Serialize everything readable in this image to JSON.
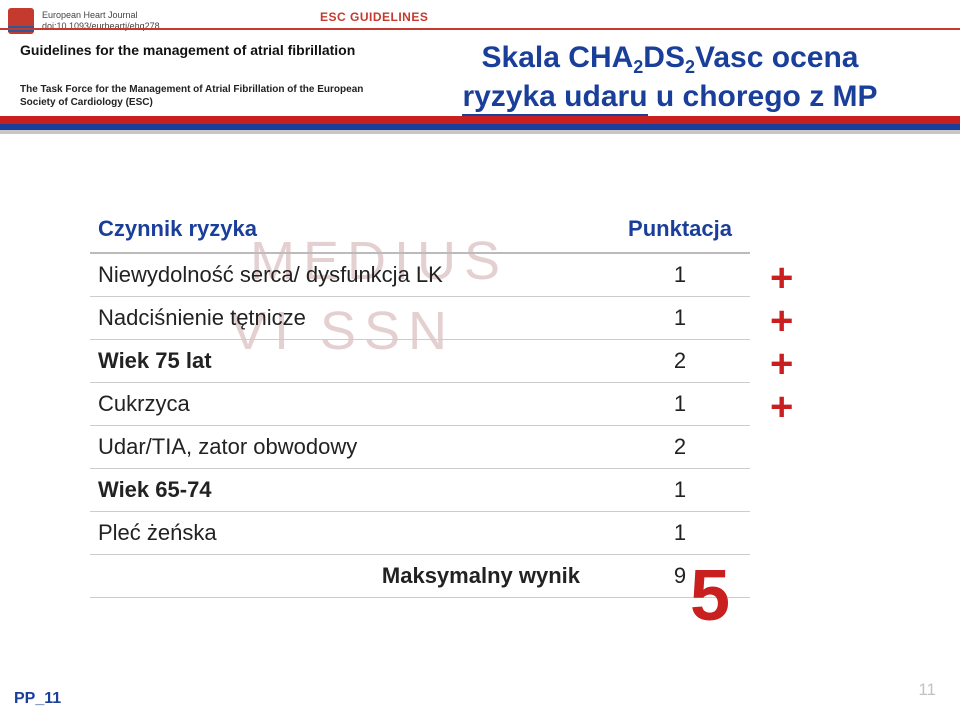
{
  "header": {
    "journal_name": "European Heart Journal",
    "journal_doi": "doi:10.1093/eurheartj/ehq278",
    "badge": "ESC GUIDELINES",
    "guidelines_title": "Guidelines for the management of atrial fibrillation",
    "taskforce": "The Task Force for the Management of Atrial Fibrillation of the European Society of Cardiology (ESC)"
  },
  "title": {
    "line1_pre": "Skala CHA",
    "sub1": "2",
    "mid1": "DS",
    "sub2": "2",
    "mid2": "Vasc ocena",
    "line2_a": "ryzyka udaru",
    "line2_b": "u chorego z MP"
  },
  "table": {
    "header_factor": "Czynnik ryzyka",
    "header_points": "Punktacja",
    "rows": [
      {
        "label": "Niewydolność serca/ dysfunkcja LK",
        "points": "1",
        "bold": false,
        "plus": true
      },
      {
        "label": "Nadciśnienie tętnicze",
        "points": "1",
        "bold": false,
        "plus": true
      },
      {
        "label": "Wiek 75 lat",
        "points": "2",
        "bold": true,
        "plus": true
      },
      {
        "label": "Cukrzyca",
        "points": "1",
        "bold": false,
        "plus": true
      },
      {
        "label": "Udar/TIA, zator obwodowy",
        "points": "2",
        "bold": false,
        "plus": false
      },
      {
        "label": "Wiek 65-74",
        "points": "1",
        "bold": true,
        "plus": false
      },
      {
        "label": "Pleć żeńska",
        "points": "1",
        "bold": false,
        "plus": false
      }
    ],
    "total_label": "Maksymalny wynik",
    "total_points": "9",
    "score_final": "5"
  },
  "watermarks": {
    "wm1": "MEDIUS",
    "wm2": "VI SSN"
  },
  "footer": {
    "code": "PP_11",
    "page": "11"
  },
  "colors": {
    "brand_blue": "#1a3f9a",
    "brand_red": "#c91f1f",
    "text": "#222222",
    "rule": "#c43a2e"
  }
}
